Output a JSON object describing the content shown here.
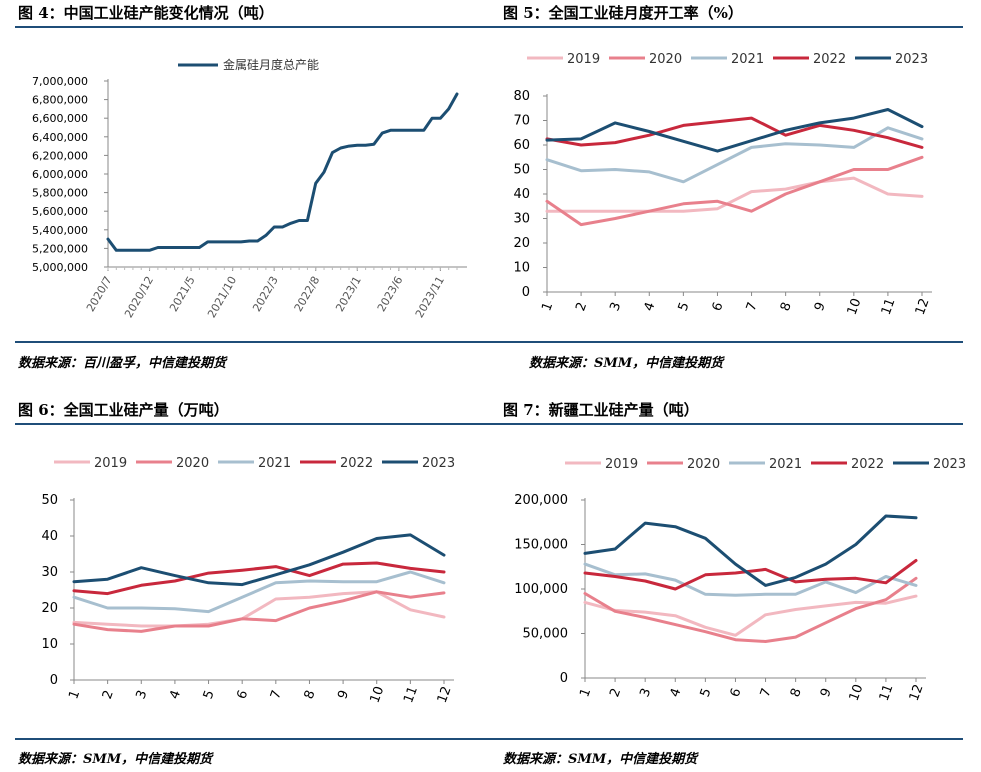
{
  "panels": [
    {
      "title": "图 4：中国工业硅产能变化情况（吨）",
      "source": "数据来源：百川盈孚，中信建投期货"
    },
    {
      "title": "图 5：全国工业硅月度开工率（%）",
      "source": "数据来源：SMM，中信建投期货"
    },
    {
      "title": "图 6：全国工业硅产量（万吨）",
      "source": "数据来源：SMM，中信建投期货"
    },
    {
      "title": "图 7：新疆工业硅产量（吨）",
      "source": "数据来源：SMM，中信建投期货"
    }
  ],
  "colors": {
    "2019": "#f2b8c0",
    "2020": "#e8808c",
    "2021": "#a7bfcf",
    "2022": "#c8283c",
    "2023": "#1c4e72",
    "capacity": "#1c4e72",
    "rule": "#1f4e79"
  },
  "chart_data": [
    {
      "type": "line",
      "series": [
        {
          "name": "金属硅月度总产能",
          "values": [
            5300000,
            5180000,
            5180000,
            5180000,
            5180000,
            5180000,
            5210000,
            5210000,
            5210000,
            5210000,
            5210000,
            5210000,
            5270000,
            5270000,
            5270000,
            5270000,
            5270000,
            5280000,
            5280000,
            5340000,
            5430000,
            5430000,
            5470000,
            5500000,
            5500000,
            5900000,
            6020000,
            6230000,
            6280000,
            6300000,
            6310000,
            6310000,
            6320000,
            6440000,
            6470000,
            6470000,
            6470000,
            6470000,
            6470000,
            6600000,
            6600000,
            6700000,
            6860000
          ]
        }
      ],
      "x_start": "2020/7",
      "tick_labels": [
        "2020/7",
        "2020/12",
        "2021/5",
        "2021/10",
        "2022/3",
        "2022/8",
        "2023/1",
        "2023/6",
        "2023/11"
      ],
      "yticks": [
        "5,000,000",
        "5,200,000",
        "5,400,000",
        "5,600,000",
        "5,800,000",
        "6,000,000",
        "6,200,000",
        "6,400,000",
        "6,600,000",
        "6,800,000",
        "7,000,000"
      ],
      "ylim": [
        5000000,
        7000000
      ]
    },
    {
      "type": "line",
      "categories": [
        "1",
        "2",
        "3",
        "4",
        "5",
        "6",
        "7",
        "8",
        "9",
        "10",
        "11",
        "12"
      ],
      "series": [
        {
          "name": "2019",
          "values": [
            33,
            33,
            33,
            33,
            33,
            34,
            41,
            42,
            45,
            46.5,
            40,
            39
          ]
        },
        {
          "name": "2020",
          "values": [
            37,
            27.5,
            30,
            33,
            36,
            37,
            33,
            40,
            45,
            50,
            50,
            55
          ]
        },
        {
          "name": "2021",
          "values": [
            54,
            49.5,
            50,
            49,
            45,
            null,
            59,
            60.5,
            60,
            59,
            67,
            62.5
          ]
        },
        {
          "name": "2022",
          "values": [
            62.5,
            60,
            61,
            64,
            68,
            69.5,
            71,
            64,
            68,
            66,
            63,
            59
          ]
        },
        {
          "name": "2023",
          "values": [
            62,
            62.5,
            69,
            65.5,
            61.5,
            57.5,
            null,
            66,
            69,
            71,
            74.5,
            67.5
          ]
        }
      ],
      "yticks": [
        "0",
        "10",
        "20",
        "30",
        "40",
        "50",
        "60",
        "70",
        "80"
      ],
      "ylim": [
        0,
        80
      ]
    },
    {
      "type": "line",
      "categories": [
        "1",
        "2",
        "3",
        "4",
        "5",
        "6",
        "7",
        "8",
        "9",
        "10",
        "11",
        "12"
      ],
      "series": [
        {
          "name": "2019",
          "values": [
            16,
            15.5,
            15,
            15,
            15.5,
            17,
            22.5,
            23,
            24,
            24.5,
            19.5,
            17.5
          ]
        },
        {
          "name": "2020",
          "values": [
            15.5,
            14,
            13.5,
            15,
            15,
            17,
            16.5,
            20,
            22,
            24.5,
            23,
            24.2
          ]
        },
        {
          "name": "2021",
          "values": [
            23,
            20,
            20,
            19.8,
            19,
            null,
            27,
            27.5,
            27.3,
            27.3,
            30,
            27
          ]
        },
        {
          "name": "2022",
          "values": [
            24.8,
            24,
            26.3,
            27.5,
            29.7,
            30.5,
            31.5,
            29,
            32.2,
            32.5,
            31,
            30
          ]
        },
        {
          "name": "2023",
          "values": [
            27.3,
            28,
            31.2,
            29,
            27,
            26.5,
            null,
            32,
            35.5,
            39.3,
            40.3,
            34.7
          ]
        }
      ],
      "yticks": [
        "0",
        "10",
        "20",
        "30",
        "40",
        "50"
      ],
      "ylim": [
        0,
        50
      ]
    },
    {
      "type": "line",
      "categories": [
        "1",
        "2",
        "3",
        "4",
        "5",
        "6",
        "7",
        "8",
        "9",
        "10",
        "11",
        "12"
      ],
      "series": [
        {
          "name": "2019",
          "values": [
            85000,
            76000,
            74000,
            70000,
            57000,
            48000,
            71000,
            77000,
            81000,
            85000,
            84000,
            92000
          ]
        },
        {
          "name": "2020",
          "values": [
            95000,
            75000,
            68000,
            60000,
            52000,
            43000,
            41000,
            46000,
            62000,
            78000,
            88000,
            112000
          ]
        },
        {
          "name": "2021",
          "values": [
            128000,
            116000,
            117000,
            110000,
            94000,
            93000,
            94000,
            94000,
            108000,
            96000,
            114000,
            104000
          ]
        },
        {
          "name": "2022",
          "values": [
            118000,
            114000,
            109000,
            100000,
            116000,
            118000,
            122000,
            108000,
            111000,
            112000,
            107000,
            132000
          ]
        },
        {
          "name": "2023",
          "values": [
            140000,
            145000,
            174000,
            170000,
            157000,
            128000,
            104000,
            113000,
            128000,
            150000,
            182000,
            180000
          ]
        }
      ],
      "yticks": [
        "0",
        "50,000",
        "100,000",
        "150,000",
        "200,000"
      ],
      "ylim": [
        0,
        200000
      ]
    }
  ]
}
